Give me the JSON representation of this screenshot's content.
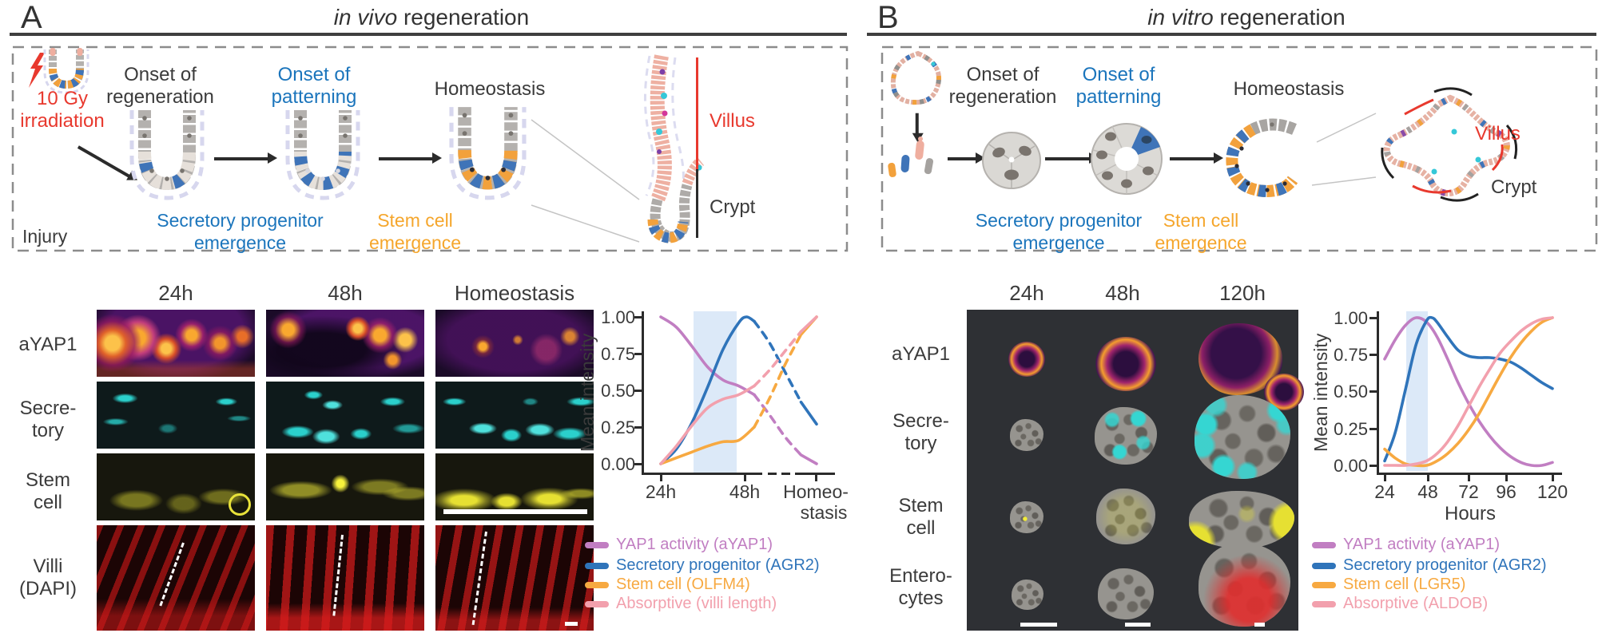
{
  "colors": {
    "accent_red": "#e8392e",
    "accent_blue": "#1b75bc",
    "accent_orange": "#f5a62c",
    "line_purple": "#c17ec2",
    "line_blue": "#2f74ba",
    "line_orange": "#f7a941",
    "line_pink": "#f2a0ad",
    "band_blue": "#dce9f8"
  },
  "panel_a": {
    "letter": "A",
    "title_italic": "in vivo",
    "title_rest": " regeneration",
    "schematic": {
      "irradiation_line1": "10 Gy",
      "irradiation_line2": "irradiation",
      "injury": "Injury",
      "stage1_line1": "Onset of",
      "stage1_line2": "regeneration",
      "stage2_line1": "Onset of",
      "stage2_line2": "patterning",
      "stage3": "Homeostasis",
      "secretory_line1": "Secretory progenitor",
      "secretory_line2": "emergence",
      "stem_line1": "Stem cell",
      "stem_line2": "emergence",
      "villus": "Villus",
      "crypt": "Crypt"
    },
    "grid": {
      "col_headers": [
        "24h",
        "48h",
        "Homeostasis"
      ],
      "row_labels": [
        [
          "aYAP1"
        ],
        [
          "Secre-",
          "tory"
        ],
        [
          "Stem",
          "cell"
        ],
        [
          "Villi",
          "(DAPI)"
        ]
      ]
    }
  },
  "panel_b": {
    "letter": "B",
    "title_italic": "in vitro",
    "title_rest": " regeneration",
    "schematic": {
      "stage1_line1": "Onset of",
      "stage1_line2": "regeneration",
      "stage2_line1": "Onset of",
      "stage2_line2": "patterning",
      "stage3": "Homeostasis",
      "secretory_line1": "Secretory progenitor",
      "secretory_line2": "emergence",
      "stem_line1": "Stem cell",
      "stem_line2": "emergence",
      "villus": "Villus",
      "crypt": "Crypt"
    },
    "grid": {
      "col_headers": [
        "24h",
        "48h",
        "120h"
      ],
      "row_labels": [
        [
          "aYAP1"
        ],
        [
          "Secre-",
          "tory"
        ],
        [
          "Stem",
          "cell"
        ],
        [
          "Entero-",
          "cytes"
        ]
      ]
    }
  },
  "chart_data": [
    {
      "id": "chartA",
      "type": "line",
      "title": "",
      "xlabel": "",
      "ylabel": "Mean intensity",
      "x_categories": [
        "24h",
        "48h",
        "Homeostasis"
      ],
      "x_tick_labels": {
        "t1": "24h",
        "t2": "48h",
        "t3_line1": "Homeo-",
        "t3_line2": "stasis"
      },
      "yticks": [
        "1.00",
        "0.75",
        "0.50",
        "0.25",
        "0.00"
      ],
      "ylim": [
        0,
        1
      ],
      "axis_break_between": [
        "48h",
        "Homeostasis"
      ],
      "highlight_band_x": [
        0.25,
        0.5
      ],
      "dash_x_range": [
        0.6,
        0.9
      ],
      "grid": false,
      "legend_position": "below",
      "series": [
        {
          "name": "YAP1 activity (aYAP1)",
          "color": "#c17ec2",
          "points": [
            [
              0,
              1
            ],
            [
              0.1,
              0.93
            ],
            [
              0.2,
              0.8
            ],
            [
              0.3,
              0.66
            ],
            [
              0.4,
              0.57
            ],
            [
              0.5,
              0.53
            ],
            [
              0.6,
              0.47
            ],
            [
              0.7,
              0.33
            ],
            [
              0.8,
              0.18
            ],
            [
              0.9,
              0.06
            ],
            [
              1,
              0
            ]
          ]
        },
        {
          "name": "Secretory progenitor (AGR2)",
          "color": "#2f74ba",
          "points": [
            [
              0,
              0
            ],
            [
              0.1,
              0.1
            ],
            [
              0.2,
              0.28
            ],
            [
              0.3,
              0.52
            ],
            [
              0.4,
              0.78
            ],
            [
              0.5,
              0.96
            ],
            [
              0.55,
              1
            ],
            [
              0.6,
              0.97
            ],
            [
              0.7,
              0.82
            ],
            [
              0.8,
              0.62
            ],
            [
              0.9,
              0.42
            ],
            [
              1,
              0.27
            ]
          ]
        },
        {
          "name": "Stem cell (OLFM4)",
          "color": "#f7a941",
          "points": [
            [
              0,
              0
            ],
            [
              0.1,
              0.04
            ],
            [
              0.2,
              0.08
            ],
            [
              0.3,
              0.12
            ],
            [
              0.4,
              0.15
            ],
            [
              0.5,
              0.16
            ],
            [
              0.6,
              0.25
            ],
            [
              0.7,
              0.45
            ],
            [
              0.8,
              0.68
            ],
            [
              0.9,
              0.88
            ],
            [
              1,
              1
            ]
          ]
        },
        {
          "name": "Absorptive (villi length)",
          "color": "#f2a0ad",
          "points": [
            [
              0,
              0
            ],
            [
              0.1,
              0.12
            ],
            [
              0.2,
              0.26
            ],
            [
              0.3,
              0.38
            ],
            [
              0.4,
              0.44
            ],
            [
              0.5,
              0.47
            ],
            [
              0.6,
              0.53
            ],
            [
              0.7,
              0.64
            ],
            [
              0.8,
              0.77
            ],
            [
              0.9,
              0.9
            ],
            [
              1,
              1
            ]
          ]
        }
      ]
    },
    {
      "id": "chartB",
      "type": "line",
      "title": "",
      "xlabel": "Hours",
      "ylabel": "Mean intensity",
      "xticks": [
        "24",
        "48",
        "72",
        "96",
        "120"
      ],
      "xlim": [
        24,
        120
      ],
      "ylim": [
        0,
        1
      ],
      "yticks": [
        "1.00",
        "0.75",
        "0.50",
        "0.25",
        "0.00"
      ],
      "highlight_band_hours": [
        36,
        48
      ],
      "grid": false,
      "legend_position": "below",
      "series": [
        {
          "name": "YAP1 activity (aYAP1)",
          "color": "#c17ec2",
          "points": [
            [
              24,
              0.72
            ],
            [
              30,
              0.85
            ],
            [
              36,
              0.95
            ],
            [
              42,
              1
            ],
            [
              48,
              0.97
            ],
            [
              54,
              0.87
            ],
            [
              60,
              0.72
            ],
            [
              66,
              0.56
            ],
            [
              72,
              0.42
            ],
            [
              78,
              0.3
            ],
            [
              84,
              0.2
            ],
            [
              90,
              0.12
            ],
            [
              96,
              0.06
            ],
            [
              102,
              0.02
            ],
            [
              108,
              0
            ],
            [
              114,
              0
            ],
            [
              120,
              0.02
            ]
          ]
        },
        {
          "name": "Secretory progenitor (AGR2)",
          "color": "#2f74ba",
          "points": [
            [
              24,
              0.03
            ],
            [
              30,
              0.22
            ],
            [
              36,
              0.52
            ],
            [
              42,
              0.82
            ],
            [
              48,
              0.98
            ],
            [
              51,
              1
            ],
            [
              54,
              0.97
            ],
            [
              60,
              0.87
            ],
            [
              66,
              0.78
            ],
            [
              72,
              0.74
            ],
            [
              78,
              0.73
            ],
            [
              84,
              0.73
            ],
            [
              90,
              0.72
            ],
            [
              96,
              0.7
            ],
            [
              102,
              0.66
            ],
            [
              108,
              0.61
            ],
            [
              114,
              0.56
            ],
            [
              120,
              0.52
            ]
          ]
        },
        {
          "name": "Stem cell (LGR5)",
          "color": "#f7a941",
          "points": [
            [
              24,
              0.11
            ],
            [
              30,
              0.05
            ],
            [
              36,
              0.01
            ],
            [
              42,
              0
            ],
            [
              48,
              0
            ],
            [
              54,
              0.03
            ],
            [
              60,
              0.08
            ],
            [
              66,
              0.15
            ],
            [
              72,
              0.24
            ],
            [
              78,
              0.35
            ],
            [
              84,
              0.48
            ],
            [
              90,
              0.61
            ],
            [
              96,
              0.73
            ],
            [
              102,
              0.83
            ],
            [
              108,
              0.91
            ],
            [
              114,
              0.97
            ],
            [
              120,
              1
            ]
          ]
        },
        {
          "name": "Absorptive (ALDOB)",
          "color": "#f2a0ad",
          "points": [
            [
              24,
              0
            ],
            [
              30,
              0
            ],
            [
              36,
              0
            ],
            [
              42,
              0.01
            ],
            [
              48,
              0.03
            ],
            [
              54,
              0.08
            ],
            [
              60,
              0.16
            ],
            [
              66,
              0.27
            ],
            [
              72,
              0.4
            ],
            [
              78,
              0.53
            ],
            [
              84,
              0.65
            ],
            [
              90,
              0.76
            ],
            [
              96,
              0.84
            ],
            [
              102,
              0.91
            ],
            [
              108,
              0.96
            ],
            [
              114,
              0.99
            ],
            [
              120,
              1
            ]
          ]
        }
      ]
    }
  ]
}
